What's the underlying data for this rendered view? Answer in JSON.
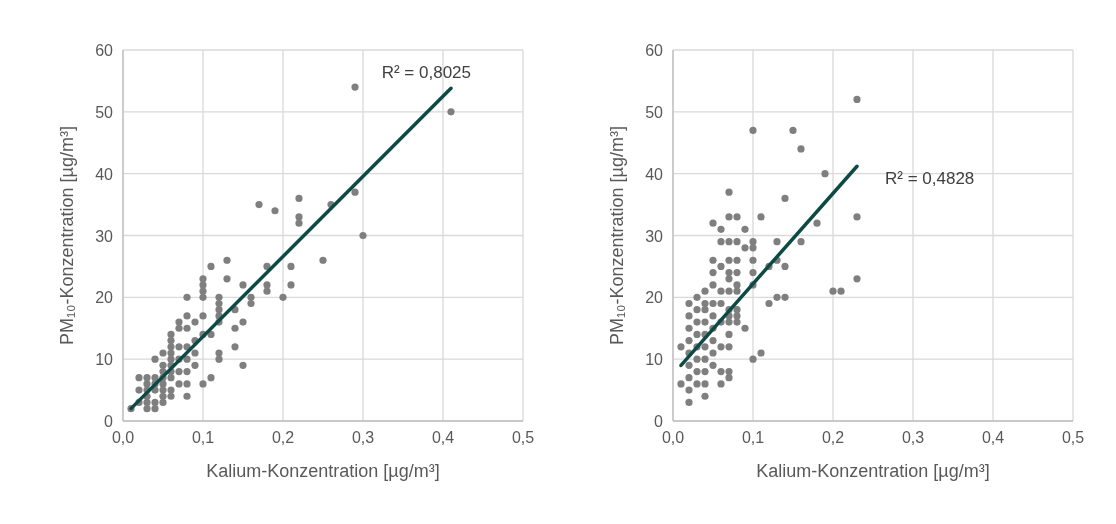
{
  "chart_data": [
    {
      "type": "scatter",
      "xlabel": "Kalium-Konzentration [µg/m³]",
      "ylabel": "PM₁₀-Konzentration [µg/m³]",
      "annotations": [
        "R² = 0,8025"
      ],
      "xlim": [
        0,
        0.5
      ],
      "xticks": [
        {
          "value": 0,
          "label": "0,0"
        },
        {
          "value": 0.1,
          "label": "0,1"
        },
        {
          "value": 0.2,
          "label": "0,2"
        },
        {
          "value": 0.3,
          "label": "0,3"
        },
        {
          "value": 0.4,
          "label": "0,4"
        },
        {
          "value": 0.5,
          "label": "0,5"
        }
      ],
      "ylim": [
        0,
        60
      ],
      "yticks": [
        0,
        10,
        20,
        30,
        40,
        50,
        60
      ],
      "grid": true,
      "series": [
        {
          "marker": "circle",
          "color": "#7f7f7f",
          "x": [
            0.29,
            0.41,
            0.17,
            0.19,
            0.22,
            0.22,
            0.22,
            0.26,
            0.29,
            0.3,
            0.25,
            0.21,
            0.21,
            0.2,
            0.18,
            0.18,
            0.18,
            0.15,
            0.15,
            0.15,
            0.16,
            0.16,
            0.14,
            0.14,
            0.14,
            0.13,
            0.13,
            0.12,
            0.12,
            0.12,
            0.12,
            0.12,
            0.12,
            0.12,
            0.11,
            0.11,
            0.11,
            0.1,
            0.1,
            0.1,
            0.1,
            0.1,
            0.1,
            0.1,
            0.09,
            0.09,
            0.09,
            0.09,
            0.08,
            0.08,
            0.08,
            0.08,
            0.08,
            0.08,
            0.08,
            0.08,
            0.07,
            0.07,
            0.07,
            0.07,
            0.07,
            0.07,
            0.06,
            0.06,
            0.06,
            0.06,
            0.06,
            0.06,
            0.06,
            0.06,
            0.06,
            0.06,
            0.05,
            0.05,
            0.05,
            0.05,
            0.05,
            0.05,
            0.05,
            0.05,
            0.04,
            0.04,
            0.04,
            0.04,
            0.04,
            0.04,
            0.03,
            0.03,
            0.03,
            0.03,
            0.03,
            0.03,
            0.02,
            0.02,
            0.02,
            0.01
          ],
          "values": [
            54,
            50,
            35,
            34,
            36,
            33,
            32,
            35,
            37,
            30,
            26,
            25,
            22,
            20,
            25,
            22,
            21,
            22,
            16,
            9,
            20,
            19,
            18,
            15,
            12,
            26,
            23,
            20,
            19,
            18,
            17,
            16,
            11,
            10,
            25,
            7,
            14,
            23,
            22,
            21,
            20,
            17,
            14,
            6,
            16,
            13,
            11,
            9,
            20,
            17,
            15,
            12,
            10,
            8,
            6,
            4,
            16,
            15,
            12,
            10,
            8,
            6,
            14,
            13,
            12,
            11,
            10,
            9,
            8,
            7,
            5,
            4,
            11,
            9,
            8,
            7,
            6,
            5,
            4,
            3,
            10,
            7,
            6,
            5,
            3,
            2,
            7,
            6,
            5,
            4,
            3,
            2,
            7,
            5,
            3,
            2
          ]
        },
        {
          "type": "line",
          "color": "#0d4a45",
          "x": [
            0.01,
            0.41
          ],
          "values": [
            2,
            53.8
          ]
        }
      ]
    },
    {
      "type": "scatter",
      "xlabel": "Kalium-Konzentration [µg/m³]",
      "ylabel": "PM₁₀-Konzentration [µg/m³]",
      "annotations": [
        "R² = 0,4828"
      ],
      "xlim": [
        0,
        0.5
      ],
      "xticks": [
        {
          "value": 0,
          "label": "0,0"
        },
        {
          "value": 0.1,
          "label": "0,1"
        },
        {
          "value": 0.2,
          "label": "0,2"
        },
        {
          "value": 0.3,
          "label": "0,3"
        },
        {
          "value": 0.4,
          "label": "0,4"
        },
        {
          "value": 0.5,
          "label": "0,5"
        }
      ],
      "ylim": [
        0,
        60
      ],
      "yticks": [
        0,
        10,
        20,
        30,
        40,
        50,
        60
      ],
      "grid": true,
      "series": [
        {
          "marker": "circle",
          "color": "#7f7f7f",
          "x": [
            0.23,
            0.1,
            0.15,
            0.16,
            0.19,
            0.23,
            0.23,
            0.2,
            0.21,
            0.14,
            0.07,
            0.18,
            0.16,
            0.13,
            0.14,
            0.13,
            0.12,
            0.12,
            0.13,
            0.14,
            0.11,
            0.11,
            0.1,
            0.1,
            0.1,
            0.1,
            0.1,
            0.1,
            0.09,
            0.09,
            0.09,
            0.08,
            0.08,
            0.08,
            0.08,
            0.08,
            0.08,
            0.08,
            0.08,
            0.08,
            0.07,
            0.07,
            0.07,
            0.07,
            0.07,
            0.07,
            0.07,
            0.07,
            0.07,
            0.07,
            0.07,
            0.07,
            0.07,
            0.06,
            0.06,
            0.06,
            0.06,
            0.06,
            0.06,
            0.06,
            0.06,
            0.06,
            0.05,
            0.05,
            0.05,
            0.05,
            0.05,
            0.05,
            0.05,
            0.05,
            0.05,
            0.05,
            0.04,
            0.04,
            0.04,
            0.04,
            0.04,
            0.04,
            0.04,
            0.04,
            0.04,
            0.04,
            0.03,
            0.03,
            0.03,
            0.03,
            0.03,
            0.03,
            0.03,
            0.03,
            0.02,
            0.02,
            0.02,
            0.02,
            0.02,
            0.02,
            0.02,
            0.02,
            0.02,
            0.01,
            0.01
          ],
          "values": [
            52,
            47,
            47,
            44,
            40,
            33,
            23,
            21,
            21,
            36,
            37,
            32,
            29,
            29,
            25,
            26,
            25,
            19,
            20,
            20,
            33,
            11,
            29,
            28,
            26,
            24,
            22,
            10,
            31,
            28,
            15,
            33,
            29,
            26,
            24,
            22,
            21,
            18,
            17,
            16,
            33,
            29,
            26,
            24,
            23,
            21,
            18,
            17,
            16,
            14,
            12,
            8,
            7,
            31,
            29,
            25,
            21,
            19,
            16,
            12,
            8,
            6,
            32,
            26,
            24,
            22,
            19,
            17,
            15,
            13,
            11,
            9,
            21,
            19,
            18,
            16,
            14,
            12,
            10,
            8,
            6,
            4,
            20,
            18,
            16,
            14,
            12,
            10,
            8,
            6,
            19,
            17,
            15,
            13,
            11,
            9,
            7,
            5,
            3,
            12,
            6
          ]
        },
        {
          "type": "line",
          "color": "#0d4a45",
          "x": [
            0.01,
            0.23
          ],
          "values": [
            9,
            41.2
          ]
        }
      ]
    }
  ]
}
